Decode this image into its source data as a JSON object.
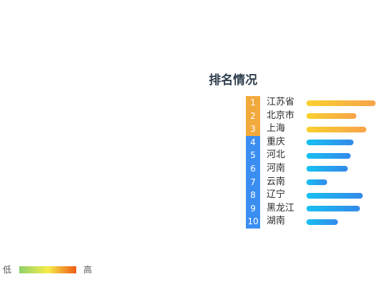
{
  "chart_data": {
    "type": "bar",
    "title": "排名情况",
    "ranks": [
      "1",
      "2",
      "3",
      "4",
      "5",
      "6",
      "7",
      "8",
      "9",
      "10"
    ],
    "categories": [
      "江苏省",
      "北京市",
      "上海",
      "重庆",
      "河北",
      "河南",
      "云南",
      "辽宁",
      "黑龙江",
      "湖南"
    ],
    "values": [
      97,
      70,
      84,
      66,
      62,
      58,
      29,
      79,
      75,
      44
    ],
    "legend": {
      "low_label": "低",
      "high_label": "高",
      "colors": [
        "#8fd16a",
        "#f6ec4a",
        "#f05a14"
      ]
    },
    "colors": {
      "top_rank": "#f2a93b",
      "other_rank": "#3a8ef2",
      "top_bar_start": "#f9d12e",
      "top_bar_end": "#f7a24a",
      "other_bar_start": "#17c0f2",
      "other_bar_end": "#3389ea"
    },
    "top_highlight_count": 3
  }
}
